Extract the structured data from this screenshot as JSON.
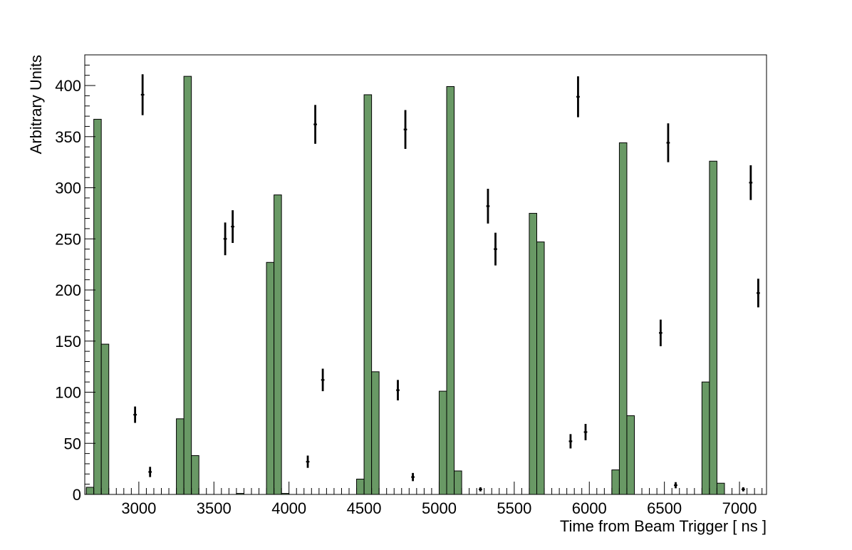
{
  "chart_data": {
    "type": "bar",
    "title": "",
    "xlabel": "Time from Beam Trigger  [ ns ]",
    "ylabel": "Arbitrary Units",
    "xlim": [
      2640,
      7180
    ],
    "ylim": [
      0,
      430
    ],
    "grid": false,
    "x_ticks": [
      3000,
      3500,
      4000,
      4500,
      5000,
      5500,
      6000,
      6500,
      7000
    ],
    "x_tick_labels": [
      "3000",
      "3500",
      "4000",
      "4500",
      "5000",
      "5500",
      "6000",
      "6500",
      "7000"
    ],
    "y_ticks": [
      0,
      50,
      100,
      150,
      200,
      250,
      300,
      350,
      400
    ],
    "y_tick_labels": [
      "0",
      "50",
      "100",
      "150",
      "200",
      "250",
      "300",
      "350",
      "400"
    ],
    "bin_width": 50,
    "series": [
      {
        "kind": "histogram",
        "color": "#699965",
        "bins": [
          {
            "x0": 2650,
            "x1": 2700,
            "value": 7
          },
          {
            "x0": 2700,
            "x1": 2750,
            "value": 367
          },
          {
            "x0": 2750,
            "x1": 2800,
            "value": 147
          },
          {
            "x0": 3250,
            "x1": 3300,
            "value": 74
          },
          {
            "x0": 3300,
            "x1": 3350,
            "value": 409
          },
          {
            "x0": 3350,
            "x1": 3400,
            "value": 38
          },
          {
            "x0": 3650,
            "x1": 3700,
            "value": 1
          },
          {
            "x0": 3850,
            "x1": 3900,
            "value": 227
          },
          {
            "x0": 3900,
            "x1": 3950,
            "value": 293
          },
          {
            "x0": 3950,
            "x1": 4000,
            "value": 1
          },
          {
            "x0": 4450,
            "x1": 4500,
            "value": 15
          },
          {
            "x0": 4500,
            "x1": 4550,
            "value": 391
          },
          {
            "x0": 4550,
            "x1": 4600,
            "value": 120
          },
          {
            "x0": 5000,
            "x1": 5050,
            "value": 101
          },
          {
            "x0": 5050,
            "x1": 5100,
            "value": 399
          },
          {
            "x0": 5100,
            "x1": 5150,
            "value": 23
          },
          {
            "x0": 5600,
            "x1": 5650,
            "value": 275
          },
          {
            "x0": 5650,
            "x1": 5700,
            "value": 247
          },
          {
            "x0": 6150,
            "x1": 6200,
            "value": 24
          },
          {
            "x0": 6200,
            "x1": 6250,
            "value": 344
          },
          {
            "x0": 6250,
            "x1": 6300,
            "value": 77
          },
          {
            "x0": 6750,
            "x1": 6800,
            "value": 110
          },
          {
            "x0": 6800,
            "x1": 6850,
            "value": 326
          },
          {
            "x0": 6850,
            "x1": 6900,
            "value": 11
          }
        ]
      },
      {
        "kind": "points-with-errors",
        "color": "#000000",
        "points": [
          {
            "x": 2975,
            "y": 78,
            "err": 8
          },
          {
            "x": 3025,
            "y": 391,
            "err": 20
          },
          {
            "x": 3075,
            "y": 22,
            "err": 5
          },
          {
            "x": 3575,
            "y": 250,
            "err": 16
          },
          {
            "x": 3625,
            "y": 262,
            "err": 16
          },
          {
            "x": 4125,
            "y": 32,
            "err": 6
          },
          {
            "x": 4175,
            "y": 362,
            "err": 19
          },
          {
            "x": 4225,
            "y": 112,
            "err": 11
          },
          {
            "x": 4725,
            "y": 102,
            "err": 10
          },
          {
            "x": 4775,
            "y": 357,
            "err": 19
          },
          {
            "x": 4825,
            "y": 17,
            "err": 4
          },
          {
            "x": 5275,
            "y": 5,
            "err": 2
          },
          {
            "x": 5325,
            "y": 282,
            "err": 17
          },
          {
            "x": 5375,
            "y": 240,
            "err": 16
          },
          {
            "x": 5875,
            "y": 52,
            "err": 7
          },
          {
            "x": 5925,
            "y": 389,
            "err": 20
          },
          {
            "x": 5975,
            "y": 61,
            "err": 8
          },
          {
            "x": 6475,
            "y": 158,
            "err": 13
          },
          {
            "x": 6525,
            "y": 344,
            "err": 19
          },
          {
            "x": 6575,
            "y": 9,
            "err": 3
          },
          {
            "x": 7025,
            "y": 5,
            "err": 2
          },
          {
            "x": 7075,
            "y": 305,
            "err": 17
          },
          {
            "x": 7125,
            "y": 197,
            "err": 14
          }
        ]
      }
    ]
  }
}
